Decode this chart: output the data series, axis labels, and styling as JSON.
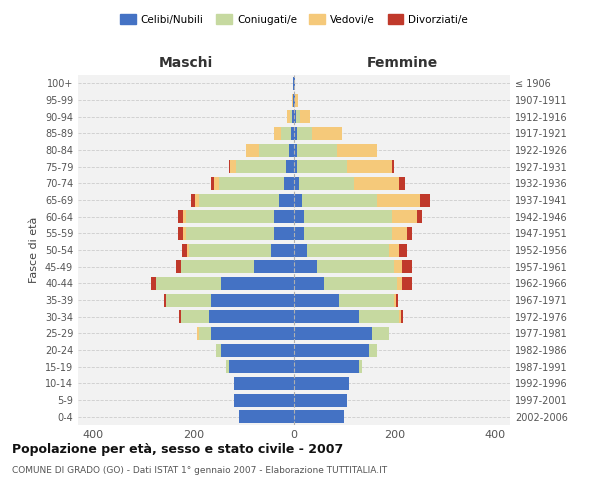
{
  "age_groups": [
    "0-4",
    "5-9",
    "10-14",
    "15-19",
    "20-24",
    "25-29",
    "30-34",
    "35-39",
    "40-44",
    "45-49",
    "50-54",
    "55-59",
    "60-64",
    "65-69",
    "70-74",
    "75-79",
    "80-84",
    "85-89",
    "90-94",
    "95-99",
    "100+"
  ],
  "birth_years": [
    "2002-2006",
    "1997-2001",
    "1992-1996",
    "1987-1991",
    "1982-1986",
    "1977-1981",
    "1972-1976",
    "1967-1971",
    "1962-1966",
    "1957-1961",
    "1952-1956",
    "1947-1951",
    "1942-1946",
    "1937-1941",
    "1932-1936",
    "1927-1931",
    "1922-1926",
    "1917-1921",
    "1912-1916",
    "1907-1911",
    "≤ 1906"
  ],
  "colors": {
    "celibi": "#4472c4",
    "coniugati": "#c6d9a0",
    "vedovi": "#f5c97a",
    "divorziati": "#c0392b"
  },
  "maschi": {
    "celibi": [
      110,
      120,
      120,
      130,
      145,
      165,
      170,
      165,
      145,
      80,
      45,
      40,
      40,
      30,
      20,
      15,
      10,
      5,
      3,
      2,
      2
    ],
    "coniugati": [
      0,
      0,
      0,
      5,
      10,
      25,
      55,
      90,
      130,
      145,
      165,
      175,
      175,
      160,
      130,
      100,
      60,
      20,
      5,
      0,
      0
    ],
    "vedovi": [
      0,
      0,
      0,
      0,
      0,
      3,
      0,
      0,
      0,
      0,
      3,
      5,
      5,
      8,
      10,
      12,
      25,
      15,
      5,
      2,
      0
    ],
    "divorziati": [
      0,
      0,
      0,
      0,
      0,
      0,
      3,
      3,
      10,
      10,
      10,
      10,
      10,
      8,
      5,
      3,
      0,
      0,
      0,
      0,
      0
    ]
  },
  "femmine": {
    "celibi": [
      100,
      105,
      110,
      130,
      150,
      155,
      130,
      90,
      60,
      45,
      25,
      20,
      20,
      15,
      10,
      5,
      5,
      5,
      3,
      2,
      2
    ],
    "coniugati": [
      0,
      0,
      0,
      5,
      15,
      35,
      80,
      110,
      145,
      155,
      165,
      175,
      175,
      150,
      110,
      100,
      80,
      30,
      8,
      0,
      0
    ],
    "vedovi": [
      0,
      0,
      0,
      0,
      0,
      0,
      3,
      3,
      10,
      15,
      20,
      30,
      50,
      85,
      90,
      90,
      80,
      60,
      20,
      5,
      0
    ],
    "divorziati": [
      0,
      0,
      0,
      0,
      0,
      0,
      3,
      5,
      20,
      20,
      15,
      10,
      10,
      20,
      10,
      5,
      0,
      0,
      0,
      0,
      0
    ]
  },
  "title": "Popolazione per età, sesso e stato civile - 2007",
  "subtitle": "COMUNE DI GRADO (GO) - Dati ISTAT 1° gennaio 2007 - Elaborazione TUTTITALIA.IT",
  "xlabel_left": "Maschi",
  "xlabel_right": "Femmine",
  "ylabel_left": "Fasce di età",
  "xlim": 430,
  "legend_labels": [
    "Celibi/Nubili",
    "Coniugati/e",
    "Vedovi/e",
    "Divorziati/e"
  ],
  "background_color": "#ffffff",
  "grid_color": "#cccccc"
}
